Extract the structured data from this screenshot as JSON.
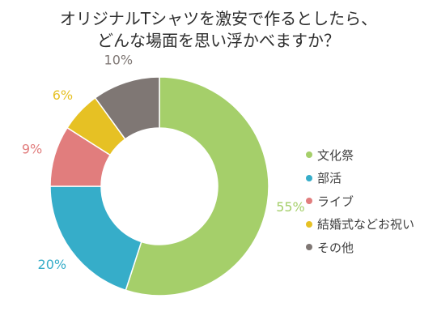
{
  "chart_data": {
    "type": "pie",
    "title_lines": [
      "オリジナルTシャツを激安で作るとしたら、",
      "どんな場面を思い浮かべますか？"
    ],
    "categories": [
      "文化祭",
      "部活",
      "ライブ",
      "結婚式などお祝い",
      "その他"
    ],
    "values": [
      55,
      20,
      9,
      6,
      10
    ],
    "value_labels": [
      "55%",
      "20%",
      "9%",
      "6%",
      "10%"
    ],
    "colors": [
      "#a5cf6a",
      "#36adc9",
      "#e17d7d",
      "#e6c124",
      "#7f7774"
    ],
    "legend_position": "right",
    "hole": "donut"
  }
}
